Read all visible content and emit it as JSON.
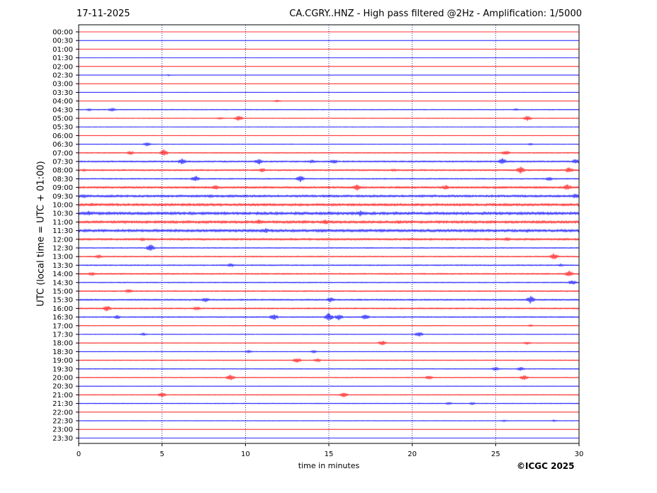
{
  "header": {
    "date": "17-11-2025",
    "title": "CA.CGRY..HNZ - High pass filtered @2Hz - Amplification: 1/5000"
  },
  "footer": {
    "copyright": "©ICGC 2025"
  },
  "chart_data": {
    "type": "line",
    "title": "CA.CGRY..HNZ - High pass filtered @2Hz - Amplification: 1/5000",
    "xlabel": "time in minutes",
    "ylabel": "UTC (local time = UTC + 01:00)",
    "xlim": [
      0,
      30
    ],
    "xticks": [
      0,
      5,
      10,
      15,
      20,
      25,
      30
    ],
    "grid_x": true,
    "colors": {
      "even_row": "#ff0000",
      "odd_row": "#0000ff",
      "grid": "#00007f"
    },
    "rows": [
      {
        "label": "00:00",
        "noise": 0.0
      },
      {
        "label": "00:30",
        "noise": 0.0
      },
      {
        "label": "01:00",
        "noise": 0.0
      },
      {
        "label": "01:30",
        "noise": 0.0
      },
      {
        "label": "02:00",
        "noise": 0.0
      },
      {
        "label": "02:30",
        "noise": 0.1,
        "events": [
          [
            5.4,
            1.2
          ]
        ]
      },
      {
        "label": "03:00",
        "noise": 0.0
      },
      {
        "label": "03:30",
        "noise": 0.1
      },
      {
        "label": "04:00",
        "noise": 0.0,
        "events": [
          [
            11.9,
            1.5
          ]
        ]
      },
      {
        "label": "04:30",
        "noise": 0.3,
        "events": [
          [
            0.6,
            2
          ],
          [
            2.0,
            3
          ],
          [
            26.2,
            1.5
          ]
        ]
      },
      {
        "label": "05:00",
        "noise": 0.2,
        "events": [
          [
            8.5,
            1.5
          ],
          [
            9.6,
            4
          ],
          [
            26.9,
            4
          ]
        ]
      },
      {
        "label": "05:30",
        "noise": 0.1
      },
      {
        "label": "06:00",
        "noise": 0.1
      },
      {
        "label": "06:30",
        "noise": 0.2,
        "events": [
          [
            4.1,
            3
          ],
          [
            27.1,
            1.5
          ]
        ]
      },
      {
        "label": "07:00",
        "noise": 0.4,
        "events": [
          [
            3.1,
            3
          ],
          [
            5.1,
            5
          ],
          [
            25.6,
            4
          ]
        ]
      },
      {
        "label": "07:30",
        "noise": 0.7,
        "events": [
          [
            6.2,
            5
          ],
          [
            10.8,
            5
          ],
          [
            14.0,
            3
          ],
          [
            15.3,
            4
          ],
          [
            25.4,
            5
          ],
          [
            29.8,
            4
          ]
        ]
      },
      {
        "label": "08:00",
        "noise": 0.7,
        "events": [
          [
            0.3,
            2
          ],
          [
            11.0,
            3
          ],
          [
            18.9,
            2
          ],
          [
            26.5,
            6
          ],
          [
            29.4,
            5
          ]
        ]
      },
      {
        "label": "08:30",
        "noise": 0.5,
        "events": [
          [
            7.0,
            5
          ],
          [
            13.3,
            5
          ],
          [
            28.2,
            3
          ]
        ]
      },
      {
        "label": "09:00",
        "noise": 1.0,
        "events": [
          [
            8.2,
            4
          ],
          [
            16.7,
            5
          ],
          [
            22.0,
            4
          ],
          [
            29.3,
            5
          ]
        ]
      },
      {
        "label": "09:30",
        "noise": 1.2,
        "events": [
          [
            0.3,
            3
          ],
          [
            7.9,
            3
          ],
          [
            29.8,
            4
          ]
        ]
      },
      {
        "label": "10:00",
        "noise": 1.4,
        "events": [
          [
            0.8,
            3
          ]
        ]
      },
      {
        "label": "10:30",
        "noise": 1.6,
        "events": [
          [
            0.6,
            4
          ],
          [
            16.9,
            5
          ],
          [
            19.0,
            3
          ]
        ]
      },
      {
        "label": "11:00",
        "noise": 1.4,
        "events": [
          [
            10.8,
            4
          ],
          [
            13.5,
            3
          ],
          [
            14.8,
            4
          ],
          [
            19.2,
            3
          ]
        ]
      },
      {
        "label": "11:30",
        "noise": 1.5,
        "events": [
          [
            11.2,
            4
          ],
          [
            14.6,
            3
          ],
          [
            26.9,
            3
          ]
        ]
      },
      {
        "label": "12:00",
        "noise": 1.0,
        "events": [
          [
            3.8,
            3
          ],
          [
            25.7,
            3
          ]
        ]
      },
      {
        "label": "12:30",
        "noise": 0.4,
        "events": [
          [
            4.3,
            6
          ]
        ]
      },
      {
        "label": "13:00",
        "noise": 0.5,
        "events": [
          [
            1.2,
            3
          ],
          [
            28.5,
            5
          ]
        ]
      },
      {
        "label": "13:30",
        "noise": 0.5,
        "events": [
          [
            9.1,
            3
          ],
          [
            28.9,
            2
          ]
        ]
      },
      {
        "label": "14:00",
        "noise": 0.6,
        "events": [
          [
            0.8,
            3
          ],
          [
            29.4,
            5
          ]
        ]
      },
      {
        "label": "14:30",
        "noise": 0.4,
        "events": [
          [
            29.6,
            4
          ]
        ]
      },
      {
        "label": "15:00",
        "noise": 0.5,
        "events": [
          [
            3.0,
            3
          ]
        ]
      },
      {
        "label": "15:30",
        "noise": 0.7,
        "events": [
          [
            7.6,
            4
          ],
          [
            15.1,
            4
          ],
          [
            27.1,
            6
          ]
        ]
      },
      {
        "label": "16:00",
        "noise": 0.6,
        "events": [
          [
            1.7,
            5
          ],
          [
            7.1,
            3
          ]
        ]
      },
      {
        "label": "16:30",
        "noise": 0.5,
        "events": [
          [
            2.3,
            3
          ],
          [
            11.7,
            5
          ],
          [
            15.0,
            7
          ],
          [
            15.6,
            5
          ],
          [
            17.2,
            4
          ]
        ]
      },
      {
        "label": "17:00",
        "noise": 0.2,
        "events": [
          [
            27.1,
            1.5
          ]
        ]
      },
      {
        "label": "17:30",
        "noise": 0.2,
        "events": [
          [
            3.9,
            2
          ],
          [
            20.4,
            4
          ]
        ]
      },
      {
        "label": "18:00",
        "noise": 0.2,
        "events": [
          [
            18.2,
            4
          ],
          [
            26.9,
            2
          ]
        ]
      },
      {
        "label": "18:30",
        "noise": 0.2,
        "events": [
          [
            10.2,
            2
          ],
          [
            14.1,
            2
          ]
        ]
      },
      {
        "label": "19:00",
        "noise": 0.3,
        "events": [
          [
            13.1,
            4
          ],
          [
            14.3,
            3
          ]
        ]
      },
      {
        "label": "19:30",
        "noise": 0.3,
        "events": [
          [
            25.0,
            3
          ],
          [
            26.5,
            3
          ]
        ]
      },
      {
        "label": "20:00",
        "noise": 0.3,
        "events": [
          [
            9.1,
            5
          ],
          [
            21.0,
            3
          ],
          [
            26.7,
            4
          ]
        ]
      },
      {
        "label": "20:30",
        "noise": 0.2
      },
      {
        "label": "21:00",
        "noise": 0.3,
        "events": [
          [
            5.0,
            4
          ],
          [
            15.9,
            4
          ]
        ]
      },
      {
        "label": "21:30",
        "noise": 0.3,
        "events": [
          [
            22.2,
            2
          ],
          [
            23.6,
            2
          ]
        ]
      },
      {
        "label": "22:00",
        "noise": 0.0
      },
      {
        "label": "22:30",
        "noise": 0.2,
        "events": [
          [
            25.5,
            1.5
          ],
          [
            28.5,
            1.5
          ]
        ]
      },
      {
        "label": "23:00",
        "noise": 0.0
      },
      {
        "label": "23:30",
        "noise": 0.0
      }
    ]
  }
}
